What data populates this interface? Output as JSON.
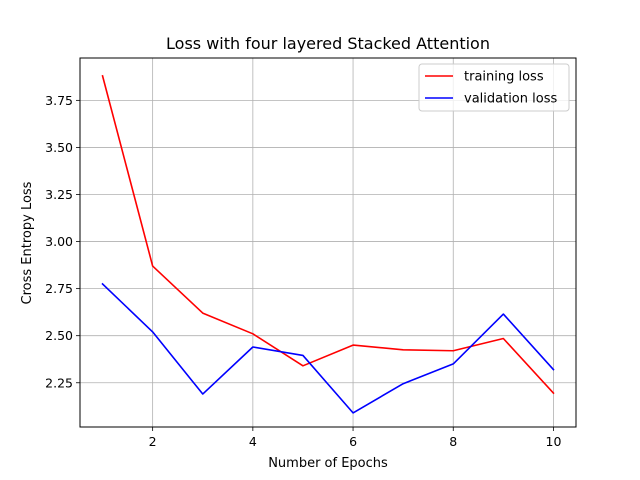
{
  "chart_data": {
    "type": "line",
    "title": "Loss with four layered Stacked Attention",
    "xlabel": "Number of Epochs",
    "ylabel": "Cross Entropy Loss",
    "x": [
      1,
      2,
      3,
      4,
      5,
      6,
      7,
      8,
      9,
      10
    ],
    "xlim": [
      0.55,
      10.45
    ],
    "ylim": [
      2.015,
      3.975
    ],
    "xticks": [
      2,
      4,
      6,
      8,
      10
    ],
    "yticks": [
      2.25,
      2.5,
      2.75,
      3.0,
      3.25,
      3.5,
      3.75
    ],
    "xtick_labels": [
      "2",
      "4",
      "6",
      "8",
      "10"
    ],
    "ytick_labels": [
      "2.25",
      "2.50",
      "2.75",
      "3.00",
      "3.25",
      "3.50",
      "3.75"
    ],
    "grid": true,
    "legend_position": "top-right",
    "series": [
      {
        "name": "training loss",
        "color": "#ff0000",
        "values": [
          3.88,
          2.87,
          2.62,
          2.51,
          2.34,
          2.45,
          2.425,
          2.42,
          2.485,
          2.195
        ]
      },
      {
        "name": "validation loss",
        "color": "#0000ff",
        "values": [
          2.775,
          2.52,
          2.19,
          2.44,
          2.395,
          2.09,
          2.245,
          2.35,
          2.615,
          2.32
        ]
      }
    ]
  }
}
